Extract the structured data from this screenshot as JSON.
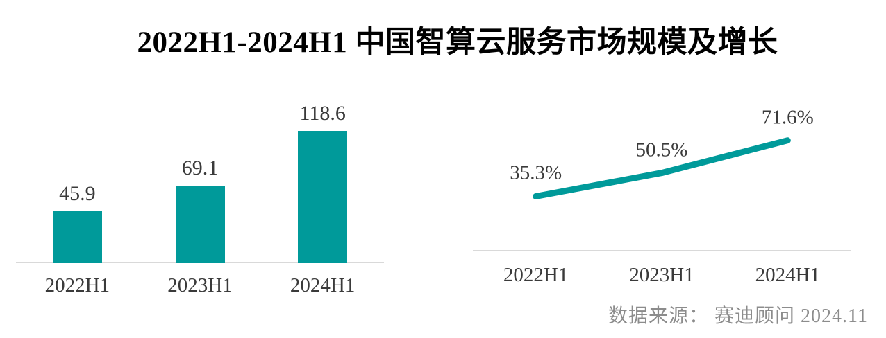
{
  "title": "2022H1-2024H1 中国智算云服务市场规模及增长",
  "source_note": "数据来源： 赛迪顾问  2024.11",
  "colors": {
    "accent_teal": "#009A9A",
    "axis_gray": "#D9D9D9",
    "label_dark": "#3A3A3A",
    "source_gray": "#8C8C8C",
    "background": "#FFFFFF"
  },
  "chart_data": [
    {
      "type": "bar",
      "name": "market-size",
      "title": "",
      "xlabel": "",
      "ylabel": "",
      "categories": [
        "2022H1",
        "2023H1",
        "2024H1"
      ],
      "values": [
        45.9,
        69.1,
        118.6
      ],
      "data_labels": [
        "45.9",
        "69.1",
        "118.6"
      ],
      "ylim": [
        0,
        130
      ],
      "bar_color": "#009A9A",
      "grid": false,
      "legend": "none",
      "axis_visible": "x-only"
    },
    {
      "type": "line",
      "name": "growth-rate",
      "title": "",
      "xlabel": "",
      "ylabel": "",
      "categories": [
        "2022H1",
        "2023H1",
        "2024H1"
      ],
      "values": [
        35.3,
        50.5,
        71.6
      ],
      "data_labels": [
        "35.3%",
        "50.5%",
        "71.6%"
      ],
      "ylim": [
        0,
        100
      ],
      "line_color": "#009A9A",
      "grid": false,
      "legend": "none",
      "axis_visible": "x-only"
    }
  ]
}
